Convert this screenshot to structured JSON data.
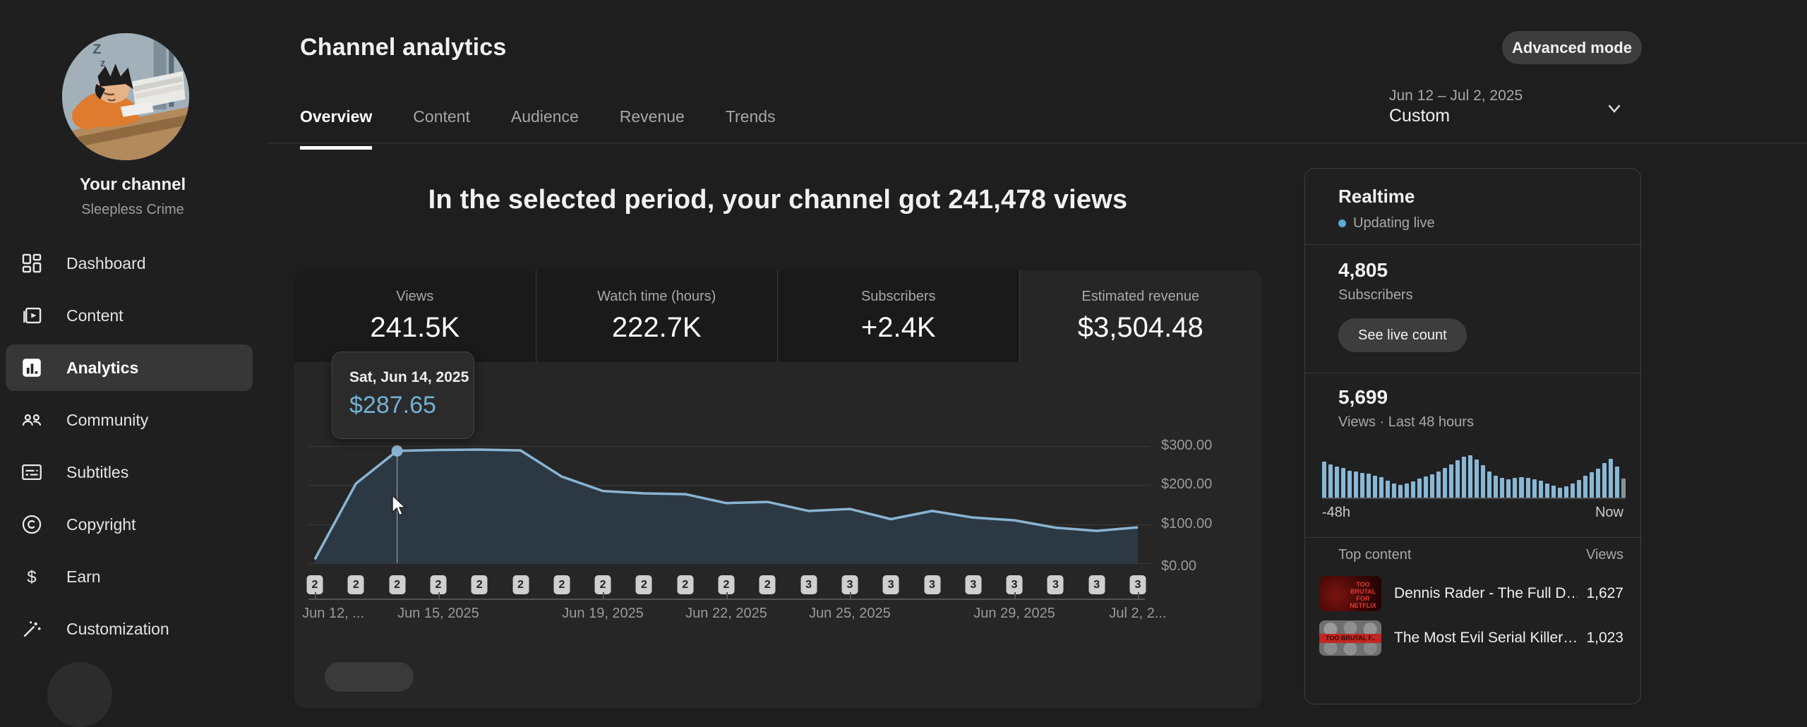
{
  "colors": {
    "accent_line": "#8ab4d2",
    "area_fill": "#2c3944",
    "tooltip_value": "#72b1d4",
    "live_dot": "#5aa9d6",
    "badge_bg": "#cfcfcf",
    "bar_color": "#89b7d6",
    "last_bar_color": "#8b939a"
  },
  "sidebar": {
    "channel_title": "Your channel",
    "channel_name": "Sleepless Crime",
    "items": [
      {
        "label": "Dashboard",
        "icon": "dashboard-icon",
        "active": false
      },
      {
        "label": "Content",
        "icon": "content-icon",
        "active": false
      },
      {
        "label": "Analytics",
        "icon": "analytics-icon",
        "active": true
      },
      {
        "label": "Community",
        "icon": "community-icon",
        "active": false
      },
      {
        "label": "Subtitles",
        "icon": "subtitles-icon",
        "active": false
      },
      {
        "label": "Copyright",
        "icon": "copyright-icon",
        "active": false
      },
      {
        "label": "Earn",
        "icon": "earn-icon",
        "active": false
      },
      {
        "label": "Customization",
        "icon": "customization-icon",
        "active": false
      }
    ]
  },
  "header": {
    "title": "Channel analytics",
    "tabs": [
      {
        "label": "Overview",
        "active": true
      },
      {
        "label": "Content",
        "active": false
      },
      {
        "label": "Audience",
        "active": false
      },
      {
        "label": "Revenue",
        "active": false
      },
      {
        "label": "Trends",
        "active": false
      }
    ],
    "advanced_mode_label": "Advanced mode",
    "date_range": "Jun 12 – Jul 2, 2025",
    "date_mode": "Custom"
  },
  "summary": {
    "headline": "In the selected period, your channel got 241,478 views"
  },
  "metrics": [
    {
      "label": "Views",
      "value": "241.5K",
      "selected": false
    },
    {
      "label": "Watch time (hours)",
      "value": "222.7K",
      "selected": false
    },
    {
      "label": "Subscribers",
      "value": "+2.4K",
      "selected": false
    },
    {
      "label": "Estimated revenue",
      "value": "$3,504.48",
      "selected": true
    }
  ],
  "chart_data": [
    {
      "type": "area",
      "title": "Estimated revenue by day",
      "x": [
        "Jun 12",
        "Jun 13",
        "Jun 14",
        "Jun 15",
        "Jun 16",
        "Jun 17",
        "Jun 18",
        "Jun 19",
        "Jun 20",
        "Jun 21",
        "Jun 22",
        "Jun 23",
        "Jun 24",
        "Jun 25",
        "Jun 26",
        "Jun 27",
        "Jun 28",
        "Jun 29",
        "Jun 30",
        "Jul 1",
        "Jul 2"
      ],
      "values": [
        10,
        204,
        287.65,
        290,
        291,
        289,
        222,
        185,
        179,
        177,
        154,
        157,
        134,
        139,
        113,
        134,
        117,
        110,
        91,
        83,
        92
      ],
      "ylim": [
        0,
        300
      ],
      "yticks": [
        300,
        200,
        100,
        0
      ],
      "ytick_labels": [
        "$300.00",
        "$200.00",
        "$100.00",
        "$0.00"
      ],
      "xtick_days": [
        0,
        3,
        7,
        10,
        13,
        17,
        20
      ],
      "xtick_labels": [
        "Jun 12, ...",
        "Jun 15, 2025",
        "Jun 19, 2025",
        "Jun 22, 2025",
        "Jun 25, 2025",
        "Jun 29, 2025",
        "Jul 2, 2..."
      ],
      "markers": [
        "2",
        "2",
        "2",
        "2",
        "2",
        "2",
        "2",
        "2",
        "2",
        "2",
        "2",
        "2",
        "3",
        "3",
        "3",
        "3",
        "3",
        "3",
        "3",
        "3",
        "3"
      ],
      "highlight": {
        "day_index": 2,
        "label": "Sat, Jun 14, 2025",
        "value": "$287.65"
      },
      "grid": true,
      "legend": false
    },
    {
      "type": "bar",
      "title": "Realtime views, last 48 hours",
      "values": [
        85,
        78,
        73,
        70,
        64,
        61,
        58,
        56,
        52,
        48,
        40,
        34,
        30,
        33,
        38,
        45,
        50,
        55,
        62,
        70,
        78,
        88,
        96,
        100,
        90,
        76,
        62,
        52,
        47,
        44,
        46,
        49,
        47,
        44,
        40,
        34,
        28,
        24,
        27,
        33,
        42,
        52,
        60,
        68,
        82,
        92,
        74,
        45
      ],
      "ylim": [
        0,
        100
      ],
      "xlabels": [
        "-48h",
        "Now"
      ]
    }
  ],
  "realtime": {
    "title": "Realtime",
    "status": "Updating live",
    "subscribers_value": "4,805",
    "subscribers_label": "Subscribers",
    "live_count_button": "See live count",
    "views_value": "5,699",
    "views_label": "Views · Last 48 hours"
  },
  "top_content": {
    "header": "Top content",
    "views_header": "Views",
    "rows": [
      {
        "title": "Dennis Rader - The Full D…",
        "views": "1,627",
        "thumb_style": "red",
        "thumb_text": "TOO BRUTAL FOR NETFLIX"
      },
      {
        "title": "The Most Evil Serial Killer…",
        "views": "1,023",
        "thumb_style": "gray",
        "thumb_text": "TOO BRUTAL F.."
      }
    ]
  }
}
